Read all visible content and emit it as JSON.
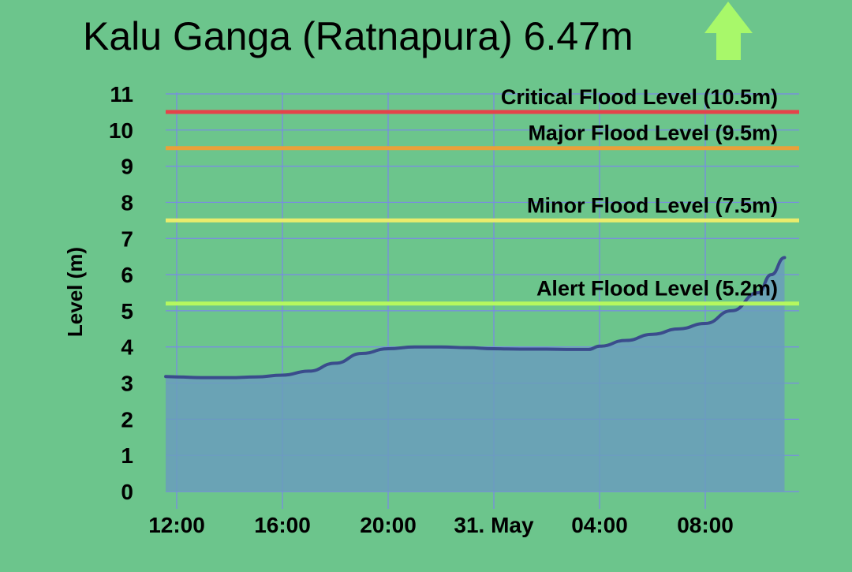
{
  "header": {
    "title": "Kalu Ganga (Ratnapura) 6.47m",
    "trend_icon": "arrow-up-icon",
    "trend_color": "#a8f86a"
  },
  "chart_data": {
    "type": "area",
    "title": "Kalu Ganga (Ratnapura) 6.47m",
    "xlabel": "",
    "ylabel": "Level (m)",
    "ylim": [
      0,
      11
    ],
    "y_ticks": [
      "0",
      "1",
      "2",
      "3",
      "4",
      "5",
      "6",
      "7",
      "8",
      "9",
      "10",
      "11"
    ],
    "x_ticks": [
      "12:00",
      "16:00",
      "20:00",
      "31. May",
      "04:00",
      "08:00"
    ],
    "grid": true,
    "x": [
      "11:35",
      "12:00",
      "13:00",
      "14:00",
      "15:00",
      "16:00",
      "17:00",
      "18:00",
      "19:00",
      "20:00",
      "21:00",
      "22:00",
      "23:00",
      "00:00",
      "01:00",
      "02:00",
      "03:00",
      "03:35",
      "04:00",
      "05:00",
      "06:00",
      "07:00",
      "08:00",
      "09:00",
      "10:00",
      "10:30",
      "11:00"
    ],
    "series": [
      {
        "values": [
          3.18,
          3.17,
          3.15,
          3.15,
          3.17,
          3.22,
          3.33,
          3.55,
          3.82,
          3.95,
          4.0,
          4.0,
          3.98,
          3.95,
          3.94,
          3.94,
          3.93,
          3.93,
          4.02,
          4.18,
          4.35,
          4.5,
          4.65,
          5.0,
          5.5,
          6.0,
          6.47
        ]
      }
    ],
    "thresholds": [
      {
        "label": "Critical Flood Level (10.5m)",
        "value": 10.5,
        "color": "#e4434a"
      },
      {
        "label": "Major Flood Level (9.5m)",
        "value": 9.5,
        "color": "#e9a13a"
      },
      {
        "label": "Minor Flood Level (7.5m)",
        "value": 7.5,
        "color": "#eaec6c"
      },
      {
        "label": "Alert Flood Level (5.2m)",
        "value": 5.2,
        "color": "#b5f85f"
      }
    ],
    "colors": {
      "line": "#3a4c8c",
      "fill": "#6a9cbc",
      "grid": "#7a88e8"
    }
  }
}
